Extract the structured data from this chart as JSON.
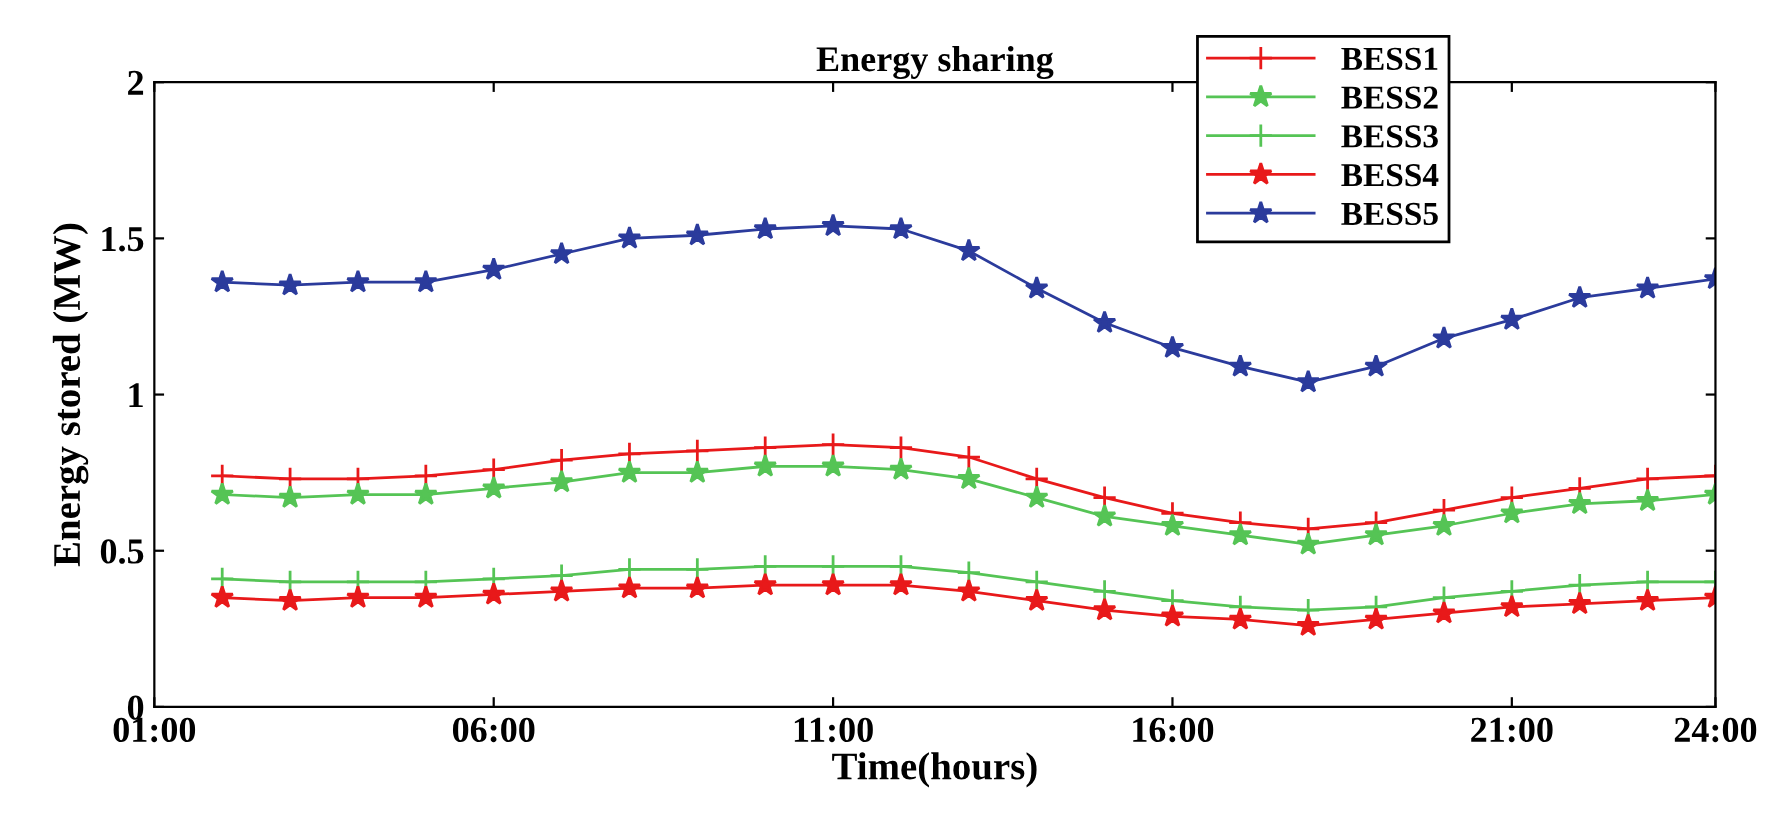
{
  "chart_data": {
    "type": "line",
    "title": "Energy sharing",
    "xlabel": "Time(hours)",
    "ylabel": "Energy stored (MW)",
    "x": [
      2,
      3,
      4,
      5,
      6,
      7,
      8,
      9,
      10,
      11,
      12,
      13,
      14,
      15,
      16,
      17,
      18,
      19,
      20,
      21,
      22,
      23,
      24
    ],
    "xlim": [
      1,
      24
    ],
    "xticks": [
      {
        "value": 1,
        "label": "01:00"
      },
      {
        "value": 6,
        "label": "06:00"
      },
      {
        "value": 11,
        "label": "11:00"
      },
      {
        "value": 16,
        "label": "16:00"
      },
      {
        "value": 21,
        "label": "21:00"
      },
      {
        "value": 24,
        "label": "24:00"
      }
    ],
    "ylim": [
      0,
      2
    ],
    "yticks": [
      0,
      0.5,
      1,
      1.5,
      2
    ],
    "grid": false,
    "legend": "top right",
    "line_style": "solid",
    "series": [
      {
        "name": "BESS1",
        "color": "#e8191a",
        "marker": "cross",
        "values": [
          0.74,
          0.73,
          0.73,
          0.74,
          0.76,
          0.79,
          0.81,
          0.82,
          0.83,
          0.84,
          0.83,
          0.8,
          0.73,
          0.67,
          0.62,
          0.59,
          0.57,
          0.59,
          0.63,
          0.67,
          0.7,
          0.73,
          0.74
        ]
      },
      {
        "name": "BESS2",
        "color": "#55c455",
        "marker": "star",
        "values": [
          0.68,
          0.67,
          0.68,
          0.68,
          0.7,
          0.72,
          0.75,
          0.75,
          0.77,
          0.77,
          0.76,
          0.73,
          0.67,
          0.61,
          0.58,
          0.55,
          0.52,
          0.55,
          0.58,
          0.62,
          0.65,
          0.66,
          0.68
        ]
      },
      {
        "name": "BESS3",
        "color": "#55c455",
        "marker": "cross",
        "values": [
          0.41,
          0.4,
          0.4,
          0.4,
          0.41,
          0.42,
          0.44,
          0.44,
          0.45,
          0.45,
          0.45,
          0.43,
          0.4,
          0.37,
          0.34,
          0.32,
          0.31,
          0.32,
          0.35,
          0.37,
          0.39,
          0.4,
          0.4
        ]
      },
      {
        "name": "BESS4",
        "color": "#e8191a",
        "marker": "star",
        "values": [
          0.35,
          0.34,
          0.35,
          0.35,
          0.36,
          0.37,
          0.38,
          0.38,
          0.39,
          0.39,
          0.39,
          0.37,
          0.34,
          0.31,
          0.29,
          0.28,
          0.26,
          0.28,
          0.3,
          0.32,
          0.33,
          0.34,
          0.35
        ]
      },
      {
        "name": "BESS5",
        "color": "#2b3b9c",
        "marker": "star",
        "values": [
          1.36,
          1.35,
          1.36,
          1.36,
          1.4,
          1.45,
          1.5,
          1.51,
          1.53,
          1.54,
          1.53,
          1.46,
          1.34,
          1.23,
          1.15,
          1.09,
          1.04,
          1.09,
          1.18,
          1.24,
          1.31,
          1.34,
          1.37
        ]
      }
    ]
  }
}
